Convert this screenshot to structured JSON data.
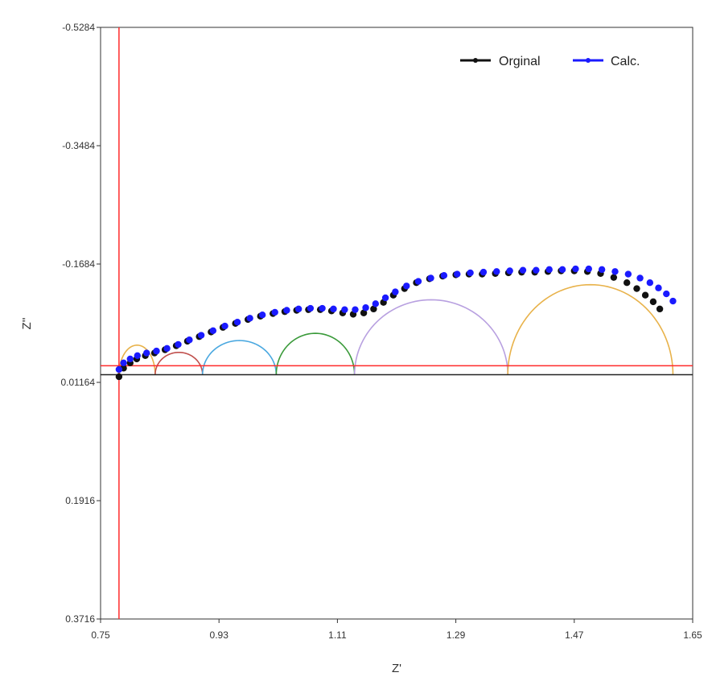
{
  "chart_data": {
    "type": "scatter",
    "title": "",
    "xlabel": "Z'",
    "ylabel": "Z''",
    "xlim": [
      0.75,
      1.65
    ],
    "ylim": [
      0.3716,
      -0.5284
    ],
    "y_inverted": true,
    "x_ticks": [
      "0.75",
      "0.93",
      "1.11",
      "1.29",
      "1.47",
      "1.65"
    ],
    "y_ticks": [
      "-0.5284",
      "-0.3484",
      "-0.1684",
      "0.01164",
      "0.1916",
      "0.3716"
    ],
    "legend_position": "top-right",
    "colors": {
      "original": "#111111",
      "calc": "#1a1aff",
      "reference_lines": "#ff2a2a",
      "zero_line": "#222222",
      "arc1": "#e8b24a",
      "arc2": "#c0504d",
      "arc3": "#4aa8e0",
      "arc4": "#3a9a3a",
      "arc5": "#b8a0e0",
      "arc6": "#e8b24a"
    },
    "series": [
      {
        "name": "Orginal",
        "x": [
          0.778,
          0.785,
          0.795,
          0.805,
          0.818,
          0.832,
          0.848,
          0.865,
          0.882,
          0.9,
          0.918,
          0.936,
          0.955,
          0.974,
          0.993,
          1.012,
          1.03,
          1.048,
          1.066,
          1.084,
          1.101,
          1.118,
          1.134,
          1.15,
          1.165,
          1.18,
          1.195,
          1.212,
          1.23,
          1.25,
          1.27,
          1.29,
          1.31,
          1.33,
          1.35,
          1.37,
          1.39,
          1.41,
          1.43,
          1.45,
          1.47,
          1.49,
          1.51,
          1.53,
          1.55,
          1.565,
          1.578,
          1.59,
          1.6
        ],
        "y": [
          0.003,
          -0.01,
          -0.018,
          -0.024,
          -0.029,
          -0.033,
          -0.038,
          -0.044,
          -0.051,
          -0.058,
          -0.065,
          -0.072,
          -0.078,
          -0.084,
          -0.089,
          -0.093,
          -0.096,
          -0.098,
          -0.099,
          -0.099,
          -0.097,
          -0.094,
          -0.092,
          -0.094,
          -0.1,
          -0.11,
          -0.121,
          -0.131,
          -0.14,
          -0.146,
          -0.15,
          -0.152,
          -0.153,
          -0.153,
          -0.154,
          -0.155,
          -0.156,
          -0.156,
          -0.157,
          -0.158,
          -0.158,
          -0.157,
          -0.154,
          -0.148,
          -0.14,
          -0.131,
          -0.121,
          -0.111,
          -0.1
        ]
      },
      {
        "name": "Calc.",
        "x": [
          0.778,
          0.785,
          0.795,
          0.806,
          0.82,
          0.835,
          0.851,
          0.868,
          0.885,
          0.903,
          0.921,
          0.939,
          0.958,
          0.977,
          0.996,
          1.015,
          1.033,
          1.051,
          1.069,
          1.087,
          1.104,
          1.121,
          1.137,
          1.153,
          1.168,
          1.183,
          1.198,
          1.215,
          1.233,
          1.252,
          1.272,
          1.292,
          1.312,
          1.332,
          1.352,
          1.372,
          1.392,
          1.412,
          1.432,
          1.452,
          1.472,
          1.492,
          1.512,
          1.532,
          1.552,
          1.57,
          1.585,
          1.598,
          1.61,
          1.62
        ],
        "y": [
          -0.008,
          -0.018,
          -0.024,
          -0.029,
          -0.033,
          -0.036,
          -0.04,
          -0.046,
          -0.053,
          -0.06,
          -0.067,
          -0.074,
          -0.08,
          -0.086,
          -0.091,
          -0.095,
          -0.098,
          -0.1,
          -0.101,
          -0.101,
          -0.1,
          -0.099,
          -0.099,
          -0.102,
          -0.108,
          -0.117,
          -0.126,
          -0.135,
          -0.142,
          -0.147,
          -0.151,
          -0.153,
          -0.155,
          -0.156,
          -0.157,
          -0.158,
          -0.159,
          -0.159,
          -0.16,
          -0.16,
          -0.161,
          -0.161,
          -0.16,
          -0.157,
          -0.153,
          -0.147,
          -0.14,
          -0.132,
          -0.123,
          -0.112
        ]
      }
    ],
    "arcs": [
      {
        "x1": 0.778,
        "x2": 0.833,
        "height": 0.045,
        "color_key": "arc1"
      },
      {
        "x1": 0.833,
        "x2": 0.905,
        "height": 0.034,
        "color_key": "arc2"
      },
      {
        "x1": 0.905,
        "x2": 1.017,
        "height": 0.052,
        "color_key": "arc3"
      },
      {
        "x1": 1.017,
        "x2": 1.136,
        "height": 0.063,
        "color_key": "arc4"
      },
      {
        "x1": 1.136,
        "x2": 1.369,
        "height": 0.114,
        "color_key": "arc5"
      },
      {
        "x1": 1.369,
        "x2": 1.62,
        "height": 0.137,
        "color_key": "arc6"
      }
    ],
    "reference_lines": {
      "x": 0.778,
      "y": 0.001
    }
  }
}
